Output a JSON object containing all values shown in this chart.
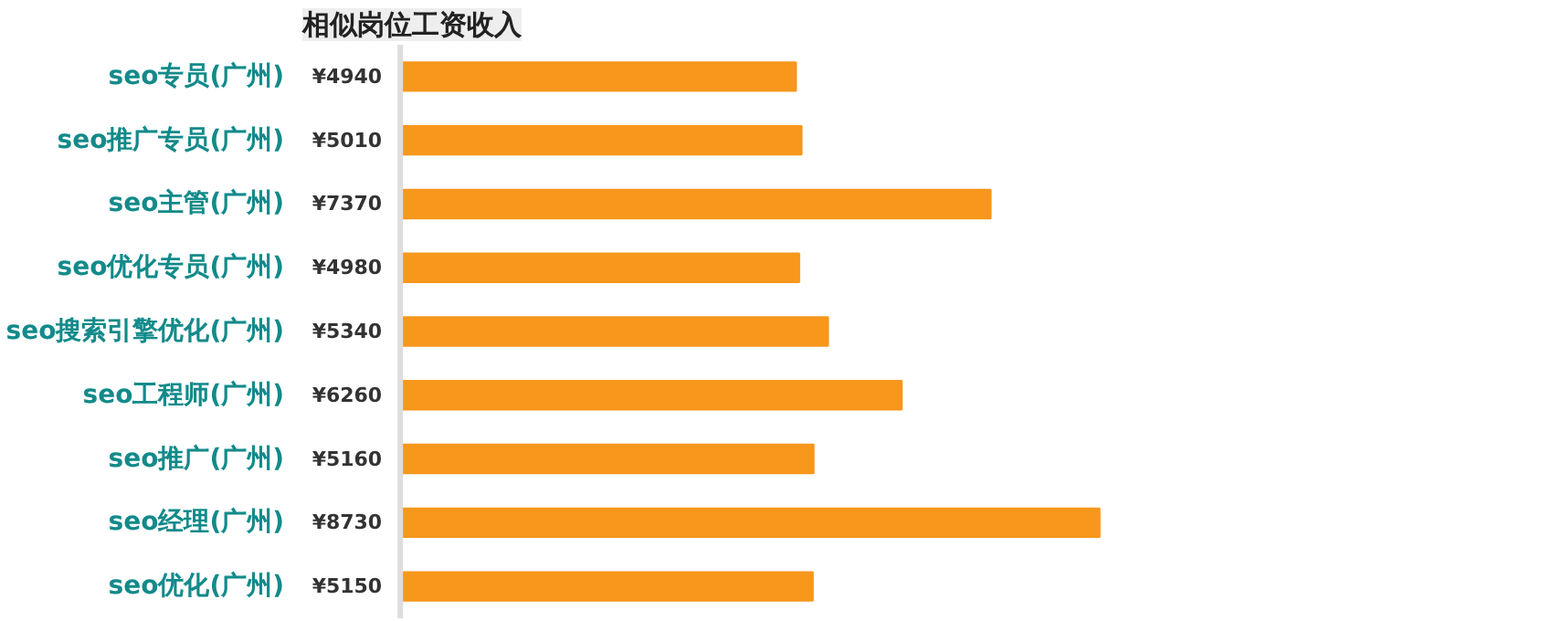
{
  "chart_data": {
    "type": "bar",
    "orientation": "horizontal",
    "title": "相似岗位工资收入",
    "categories": [
      "seo专员(广州)",
      "seo推广专员(广州)",
      "seo主管(广州)",
      "seo优化专员(广州)",
      "seo搜索引擎优化(广州)",
      "seo工程师(广州)",
      "seo推广(广州)",
      "seo经理(广州)",
      "seo优化(广州)"
    ],
    "values": [
      4940,
      5010,
      7370,
      4980,
      5340,
      6260,
      5160,
      8730,
      5150
    ],
    "value_labels": [
      "¥4940",
      "¥5010",
      "¥7370",
      "¥4980",
      "¥5340",
      "¥6260",
      "¥5160",
      "¥8730",
      "¥5150"
    ],
    "color": "#f7971c"
  }
}
